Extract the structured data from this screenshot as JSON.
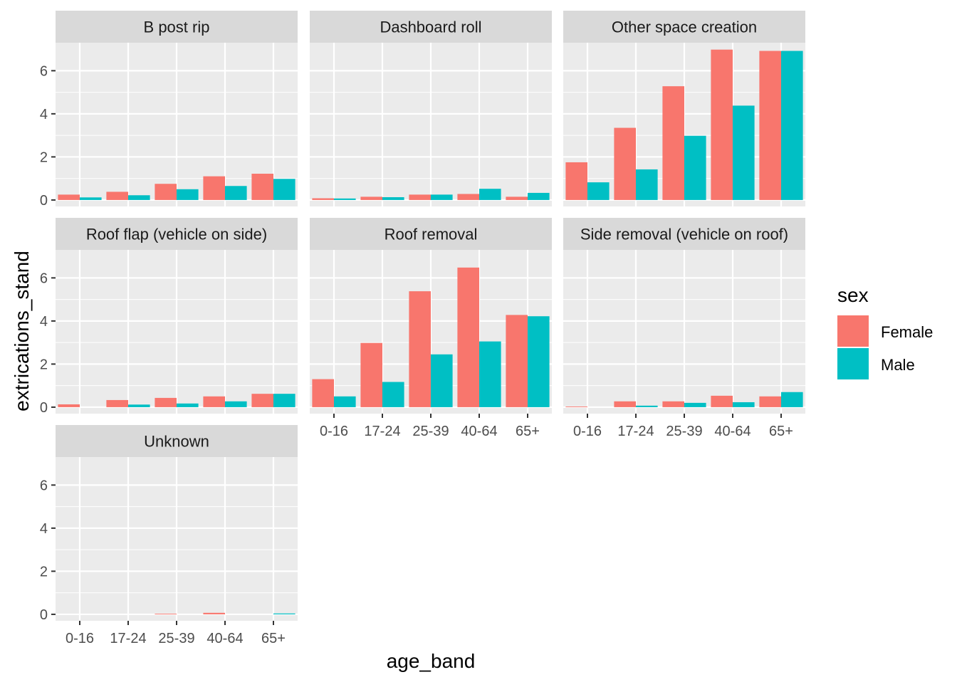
{
  "chart_data": {
    "type": "bar",
    "xlabel": "age_band",
    "ylabel": "extrications_stand",
    "categories": [
      "0-16",
      "17-24",
      "25-39",
      "40-64",
      "65+"
    ],
    "ylim": [
      -0.3,
      7.3
    ],
    "yticks": [
      0,
      2,
      4,
      6
    ],
    "grid": true,
    "legend": {
      "title": "sex",
      "position": "right",
      "entries": [
        {
          "name": "Female",
          "color": "#F8766D"
        },
        {
          "name": "Male",
          "color": "#00BFC4"
        }
      ]
    },
    "colors": {
      "panel_bg": "#EBEBEB",
      "strip_bg": "#D9D9D9",
      "grid": "#FFFFFF",
      "text": "#4D4D4D",
      "title_text": "#000000"
    },
    "facets": [
      {
        "title": "B post rip",
        "series": [
          {
            "name": "Female",
            "values": [
              0.25,
              0.38,
              0.75,
              1.1,
              1.22
            ]
          },
          {
            "name": "Male",
            "values": [
              0.12,
              0.22,
              0.5,
              0.65,
              0.98
            ]
          }
        ]
      },
      {
        "title": "Dashboard roll",
        "series": [
          {
            "name": "Female",
            "values": [
              0.08,
              0.15,
              0.25,
              0.28,
              0.15
            ]
          },
          {
            "name": "Male",
            "values": [
              0.07,
              0.13,
              0.25,
              0.52,
              0.33
            ]
          }
        ]
      },
      {
        "title": "Other space creation",
        "series": [
          {
            "name": "Female",
            "values": [
              1.75,
              3.35,
              5.28,
              6.98,
              6.92
            ]
          },
          {
            "name": "Male",
            "values": [
              0.82,
              1.42,
              2.98,
              4.38,
              6.92
            ]
          }
        ]
      },
      {
        "title": "Roof flap (vehicle on side)",
        "series": [
          {
            "name": "Female",
            "values": [
              0.13,
              0.33,
              0.43,
              0.5,
              0.62
            ]
          },
          {
            "name": "Male",
            "values": [
              0.0,
              0.12,
              0.17,
              0.27,
              0.62
            ]
          }
        ]
      },
      {
        "title": "Roof removal",
        "series": [
          {
            "name": "Female",
            "values": [
              1.3,
              2.98,
              5.38,
              6.48,
              4.28
            ]
          },
          {
            "name": "Male",
            "values": [
              0.5,
              1.17,
              2.45,
              3.05,
              4.22
            ]
          }
        ]
      },
      {
        "title": "Side removal (vehicle on roof)",
        "series": [
          {
            "name": "Female",
            "values": [
              0.03,
              0.27,
              0.27,
              0.53,
              0.5
            ]
          },
          {
            "name": "Male",
            "values": [
              0.0,
              0.07,
              0.2,
              0.23,
              0.7
            ]
          }
        ]
      },
      {
        "title": "Unknown",
        "series": [
          {
            "name": "Female",
            "values": [
              0.0,
              0.0,
              0.03,
              0.07,
              0.0
            ]
          },
          {
            "name": "Male",
            "values": [
              0.0,
              0.0,
              0.0,
              0.0,
              0.04
            ]
          }
        ]
      }
    ]
  }
}
